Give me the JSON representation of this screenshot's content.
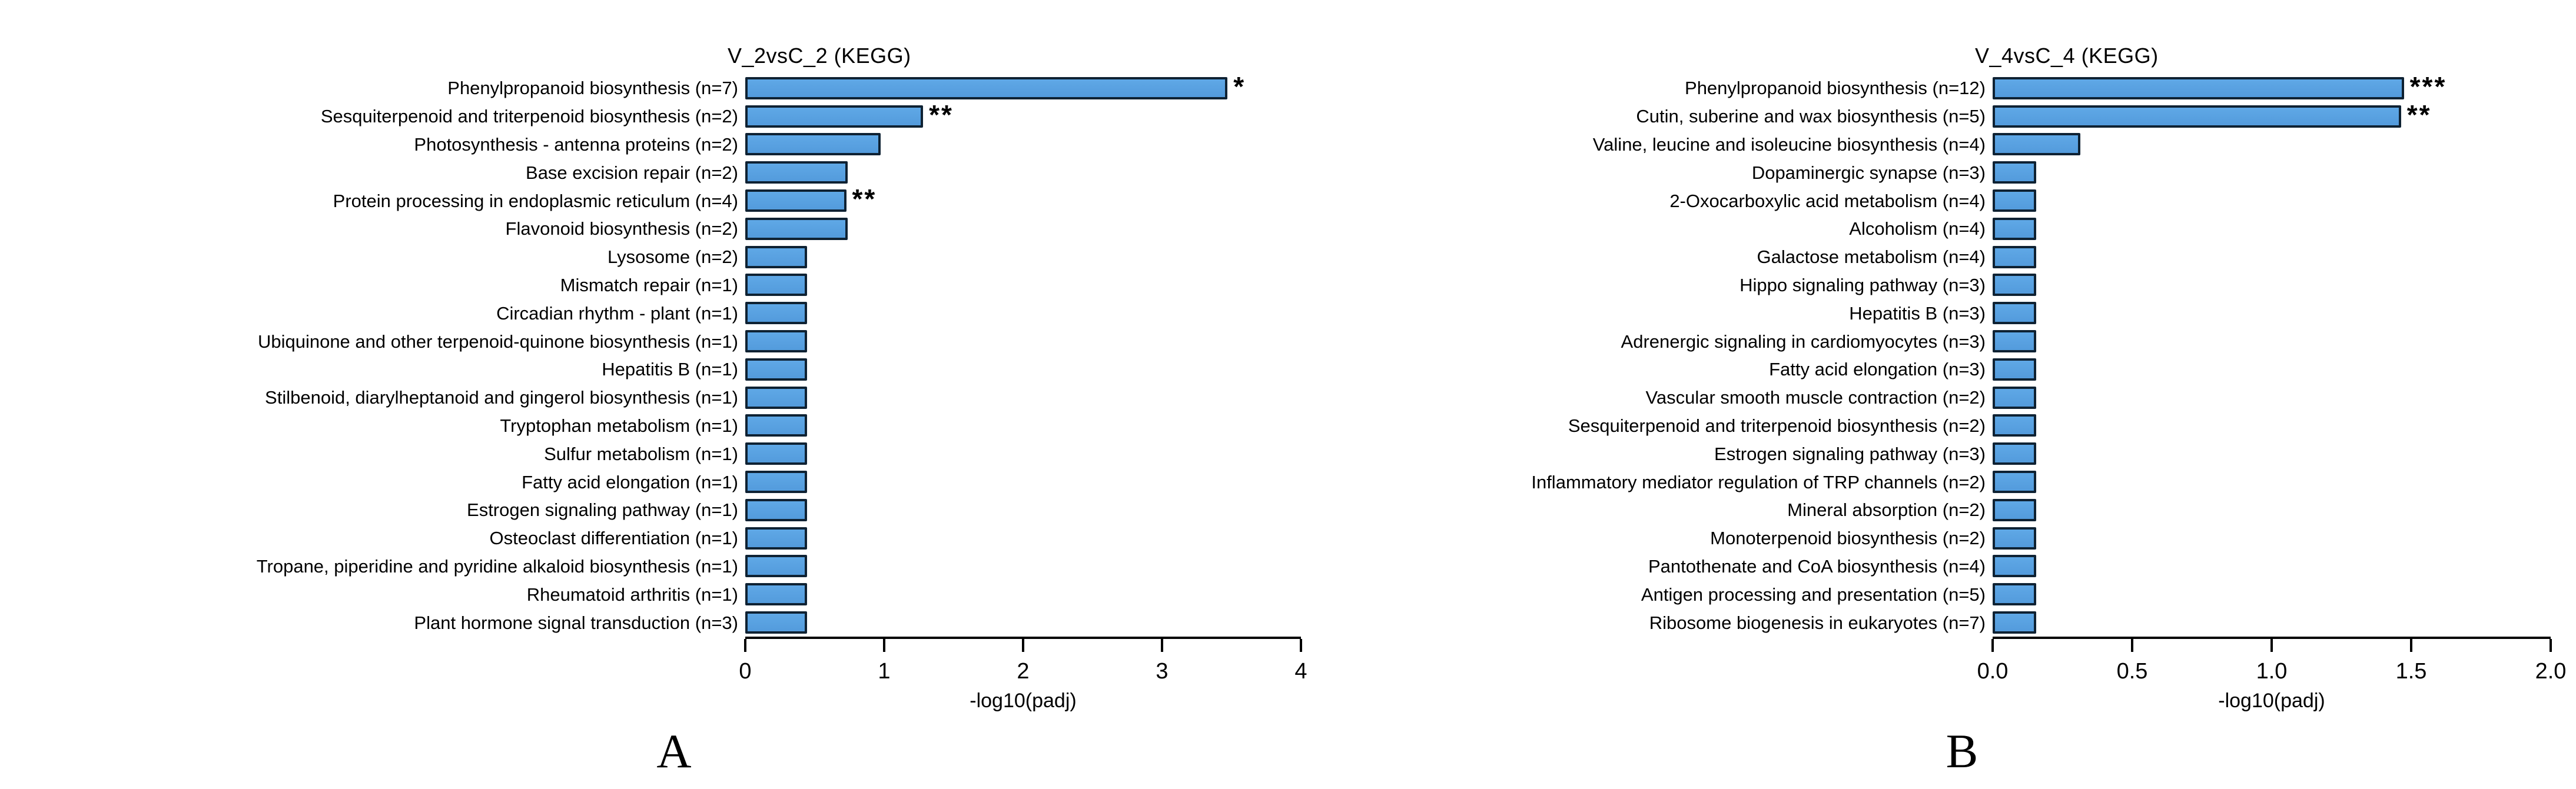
{
  "figure": {
    "background": "#ffffff",
    "bar_fill_top": "#5FA8E6",
    "bar_fill_bottom": "#539BDC",
    "bar_border": "#0F2233",
    "axis_color": "#000000",
    "text_color": "#000000"
  },
  "chart_data": [
    {
      "type": "bar",
      "title": "V_2vsC_2 (KEGG)",
      "xlabel": "-log10(padj)",
      "panel_label": "A",
      "xlim": [
        0,
        4
      ],
      "xticks": [
        "0",
        "1",
        "2",
        "3",
        "4"
      ],
      "legend": null,
      "grid": false,
      "bars": [
        {
          "label": "Phenylpropanoid biosynthesis (n=7)",
          "value": 3.2,
          "sig": "*"
        },
        {
          "label": "Sesquiterpenoid and triterpenoid biosynthesis (n=2)",
          "value": 1.18,
          "sig": "**"
        },
        {
          "label": "Photosynthesis - antenna proteins (n=2)",
          "value": 0.9,
          "sig": ""
        },
        {
          "label": "Base excision repair (n=2)",
          "value": 0.68,
          "sig": ""
        },
        {
          "label": "Protein processing in endoplasmic reticulum (n=4)",
          "value": 0.67,
          "sig": "**"
        },
        {
          "label": "Flavonoid biosynthesis (n=2)",
          "value": 0.68,
          "sig": ""
        },
        {
          "label": "Lysosome (n=2)",
          "value": 0.41,
          "sig": ""
        },
        {
          "label": "Mismatch repair (n=1)",
          "value": 0.41,
          "sig": ""
        },
        {
          "label": "Circadian rhythm - plant (n=1)",
          "value": 0.41,
          "sig": ""
        },
        {
          "label": "Ubiquinone and other terpenoid-quinone biosynthesis (n=1)",
          "value": 0.41,
          "sig": ""
        },
        {
          "label": "Hepatitis B (n=1)",
          "value": 0.41,
          "sig": ""
        },
        {
          "label": "Stilbenoid, diarylheptanoid and gingerol biosynthesis (n=1)",
          "value": 0.41,
          "sig": ""
        },
        {
          "label": "Tryptophan metabolism (n=1)",
          "value": 0.41,
          "sig": ""
        },
        {
          "label": "Sulfur metabolism (n=1)",
          "value": 0.41,
          "sig": ""
        },
        {
          "label": "Fatty acid elongation (n=1)",
          "value": 0.41,
          "sig": ""
        },
        {
          "label": "Estrogen signaling pathway (n=1)",
          "value": 0.41,
          "sig": ""
        },
        {
          "label": "Osteoclast differentiation (n=1)",
          "value": 0.41,
          "sig": ""
        },
        {
          "label": "Tropane, piperidine and pyridine alkaloid biosynthesis (n=1)",
          "value": 0.41,
          "sig": ""
        },
        {
          "label": "Rheumatoid arthritis (n=1)",
          "value": 0.41,
          "sig": ""
        },
        {
          "label": "Plant hormone signal transduction (n=3)",
          "value": 0.41,
          "sig": ""
        }
      ]
    },
    {
      "type": "bar",
      "title": "V_4vsC_4 (KEGG)",
      "xlabel": "-log10(padj)",
      "panel_label": "B",
      "xlim": [
        0,
        2
      ],
      "xticks": [
        "0.0",
        "0.5",
        "1.0",
        "1.5",
        "2.0"
      ],
      "legend": null,
      "grid": false,
      "bars": [
        {
          "label": "Phenylpropanoid biosynthesis (n=12)",
          "value": 1.41,
          "sig": "***"
        },
        {
          "label": "Cutin, suberine and wax biosynthesis (n=5)",
          "value": 1.4,
          "sig": "**"
        },
        {
          "label": "Valine, leucine and isoleucine biosynthesis (n=4)",
          "value": 0.3,
          "sig": ""
        },
        {
          "label": "Dopaminergic synapse (n=3)",
          "value": 0.15,
          "sig": ""
        },
        {
          "label": "2-Oxocarboxylic acid metabolism (n=4)",
          "value": 0.15,
          "sig": ""
        },
        {
          "label": "Alcoholism (n=4)",
          "value": 0.15,
          "sig": ""
        },
        {
          "label": "Galactose metabolism (n=4)",
          "value": 0.15,
          "sig": ""
        },
        {
          "label": "Hippo signaling pathway (n=3)",
          "value": 0.15,
          "sig": ""
        },
        {
          "label": "Hepatitis B (n=3)",
          "value": 0.15,
          "sig": ""
        },
        {
          "label": "Adrenergic signaling in cardiomyocytes (n=3)",
          "value": 0.15,
          "sig": ""
        },
        {
          "label": "Fatty acid elongation (n=3)",
          "value": 0.15,
          "sig": ""
        },
        {
          "label": "Vascular smooth muscle contraction (n=2)",
          "value": 0.15,
          "sig": ""
        },
        {
          "label": "Sesquiterpenoid and triterpenoid biosynthesis (n=2)",
          "value": 0.15,
          "sig": ""
        },
        {
          "label": "Estrogen signaling pathway (n=3)",
          "value": 0.15,
          "sig": ""
        },
        {
          "label": "Inflammatory mediator regulation of TRP channels (n=2)",
          "value": 0.15,
          "sig": ""
        },
        {
          "label": "Mineral absorption (n=2)",
          "value": 0.15,
          "sig": ""
        },
        {
          "label": "Monoterpenoid biosynthesis (n=2)",
          "value": 0.15,
          "sig": ""
        },
        {
          "label": "Pantothenate and CoA biosynthesis (n=4)",
          "value": 0.15,
          "sig": ""
        },
        {
          "label": "Antigen processing and presentation (n=5)",
          "value": 0.15,
          "sig": ""
        },
        {
          "label": "Ribosome biogenesis in eukaryotes (n=7)",
          "value": 0.15,
          "sig": ""
        }
      ]
    }
  ]
}
